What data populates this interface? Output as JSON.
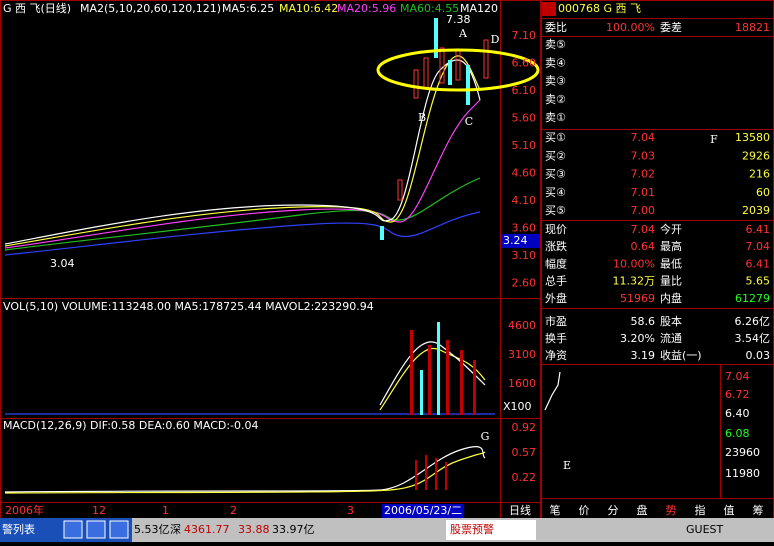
{
  "main_chart": {
    "header": "G 西  飞(日线)",
    "ma_labels": [
      "MA2(5,10,20,60,120,121)",
      "MA5:6.25",
      "MA10:6.42",
      "MA20:5.96",
      "MA60:4.55",
      "MA120"
    ],
    "high_label": "7.38",
    "low_label": "3.04",
    "annotations": [
      "A",
      "B",
      "C",
      "D"
    ],
    "price_ticks": [
      "7.10",
      "6.60",
      "6.10",
      "5.60",
      "5.10",
      "4.60",
      "4.10",
      "3.60",
      "3.10",
      "2.60"
    ],
    "current_price": "3.24"
  },
  "volume_chart": {
    "header": "VOL(5,10) VOLUME:113248.00 MA5:178725.44 MAVOL2:223290.94",
    "ticks": [
      "4600",
      "3100",
      "1600"
    ],
    "unit": "X100"
  },
  "macd_chart": {
    "header": "MACD(12,26,9) DIF:0.58 DEA:0.60 MACD:-0.04",
    "ticks": [
      "0.92",
      "0.57",
      "0.22"
    ],
    "annotation": "G"
  },
  "x_axis": {
    "labels": [
      "2006年",
      "12",
      "1",
      "2",
      "3"
    ],
    "cursor_date": "2006/05/23/二",
    "period": "日线"
  },
  "quote_panel": {
    "code": "000768 G 西  飞",
    "weibi": [
      "委比",
      "100.00%",
      "委差",
      "18821"
    ],
    "sell": [
      [
        "卖⑤",
        "",
        ""
      ],
      [
        "卖④",
        "",
        ""
      ],
      [
        "卖③",
        "",
        ""
      ],
      [
        "卖②",
        "",
        ""
      ],
      [
        "卖①",
        "",
        ""
      ]
    ],
    "buy": [
      [
        "买①",
        "7.04",
        "13580"
      ],
      [
        "买②",
        "7.03",
        "2926"
      ],
      [
        "买③",
        "7.02",
        "216"
      ],
      [
        "买④",
        "7.01",
        "60"
      ],
      [
        "买⑤",
        "7.00",
        "2039"
      ]
    ],
    "flag": "F",
    "stats": [
      [
        "现价",
        "7.04",
        "今开",
        "6.41"
      ],
      [
        "涨跌",
        "0.64",
        "最高",
        "7.04"
      ],
      [
        "幅度",
        "10.00%",
        "最低",
        "6.41"
      ],
      [
        "总手",
        "11.32万",
        "量比",
        "5.65"
      ],
      [
        "外盘",
        "51969",
        "内盘",
        "61279"
      ]
    ],
    "fundamentals": [
      [
        "市盈",
        "58.6",
        "股本",
        "6.26亿"
      ],
      [
        "换手",
        "3.20%",
        "流通",
        "3.54亿"
      ],
      [
        "净资",
        "3.19",
        "收益(一)",
        "0.03"
      ]
    ]
  },
  "mini_chart": {
    "ticks": [
      "7.04",
      "6.72",
      "6.40",
      "6.08",
      "23960",
      "11980"
    ],
    "annotation": "E"
  },
  "tabs": [
    "笔",
    "价",
    "分",
    "盘",
    "势",
    "指",
    "值",
    "筹"
  ],
  "status_bar": {
    "title": "警列表",
    "items": [
      "5.53亿",
      "深",
      "4361.77",
      "33.88",
      "33.97亿"
    ],
    "alert": "股票预警",
    "user": "GUEST"
  }
}
